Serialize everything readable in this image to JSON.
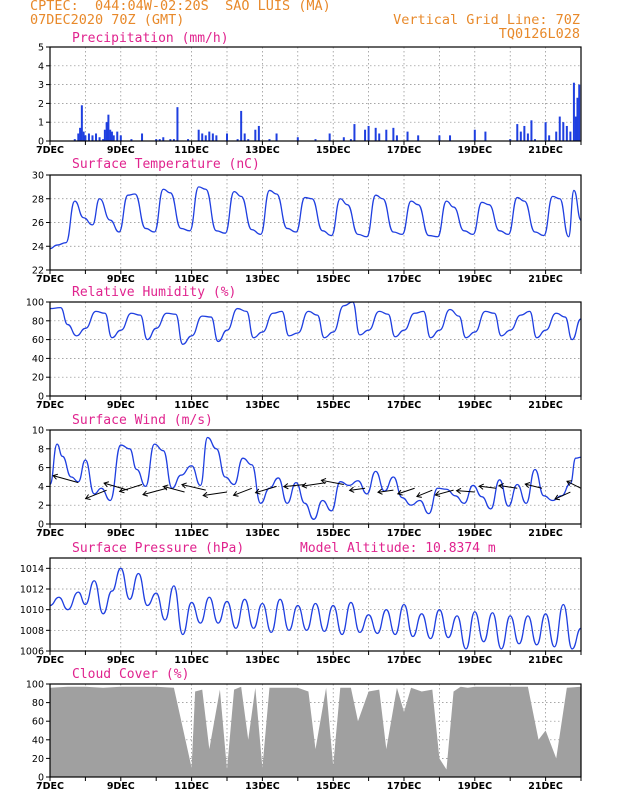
{
  "header": {
    "line1": "CPTEC:  044:04W-02:20S  SAO LUIS (MA)",
    "line2": "07DEC2020 70Z (GMT)",
    "right1": "Vertical Grid Line: 70Z",
    "right2": "TQ0126L028"
  },
  "colors": {
    "header": "#e8892a",
    "title": "#e0238e",
    "line": "#1f3fe0",
    "cloud": "#a0a0a0",
    "arrow": "#000000"
  },
  "x_axis": {
    "labels": [
      "7DEC",
      "9DEC",
      "11DEC",
      "13DEC",
      "15DEC",
      "17DEC",
      "19DEC",
      "21DEC"
    ],
    "label_days": [
      7,
      9,
      11,
      13,
      15,
      17,
      19,
      21
    ],
    "start_day": 7,
    "end_day": 22,
    "gridlines": "dotted"
  },
  "chart_data": [
    {
      "type": "bar",
      "title": "Precipitation (mm/h)",
      "ylim": [
        0,
        5
      ],
      "yticks": [
        0,
        1,
        2,
        3,
        4,
        5
      ],
      "x": [
        7.7,
        7.8,
        7.85,
        7.9,
        7.95,
        8.0,
        8.1,
        8.2,
        8.3,
        8.4,
        8.5,
        8.55,
        8.6,
        8.65,
        8.7,
        8.75,
        8.8,
        8.9,
        9.0,
        9.3,
        9.6,
        10.0,
        10.1,
        10.2,
        10.4,
        10.5,
        10.6,
        10.9,
        11.2,
        11.3,
        11.4,
        11.5,
        11.6,
        11.7,
        12.0,
        12.3,
        12.4,
        12.5,
        12.6,
        12.8,
        12.9,
        13.2,
        13.4,
        14.0,
        14.5,
        14.9,
        15.3,
        15.5,
        15.6,
        15.9,
        16.0,
        16.2,
        16.3,
        16.5,
        16.7,
        16.8,
        17.1,
        17.4,
        18.0,
        18.3,
        19.0,
        19.3,
        20.0,
        20.2,
        20.3,
        20.4,
        20.5,
        20.6,
        20.7,
        21.0,
        21.1,
        21.3,
        21.4,
        21.5,
        21.6,
        21.7,
        21.8,
        21.85,
        21.9,
        21.95
      ],
      "values": [
        0.1,
        0.4,
        0.7,
        1.9,
        0.5,
        0.3,
        0.4,
        0.3,
        0.4,
        0.2,
        0.1,
        0.6,
        1.0,
        1.4,
        0.6,
        0.5,
        0.3,
        0.5,
        0.3,
        0.1,
        0.4,
        0.1,
        0.1,
        0.2,
        0.1,
        0.1,
        1.8,
        0.1,
        0.6,
        0.4,
        0.3,
        0.5,
        0.4,
        0.3,
        0.4,
        0.1,
        1.6,
        0.4,
        0.1,
        0.6,
        0.8,
        0.1,
        0.4,
        0.2,
        0.1,
        0.4,
        0.2,
        0.1,
        0.9,
        0.6,
        0.8,
        0.7,
        0.4,
        0.6,
        0.7,
        0.3,
        0.5,
        0.3,
        0.3,
        0.3,
        0.6,
        0.5,
        0.1,
        0.9,
        0.5,
        0.8,
        0.4,
        1.1,
        0.1,
        1.0,
        0.3,
        0.5,
        1.3,
        1.0,
        0.8,
        0.5,
        3.1,
        1.3,
        2.3,
        3.0
      ],
      "xlabel": "",
      "ylabel": ""
    },
    {
      "type": "line",
      "title": "Surface Temperature (nC)",
      "ylim": [
        22,
        30
      ],
      "yticks": [
        22,
        24,
        26,
        28,
        30
      ],
      "x": [
        7.0,
        7.2,
        7.45,
        7.7,
        7.95,
        8.2,
        8.4,
        8.7,
        8.95,
        9.2,
        9.4,
        9.7,
        9.95,
        10.2,
        10.4,
        10.7,
        10.95,
        11.2,
        11.4,
        11.7,
        11.95,
        12.2,
        12.4,
        12.7,
        12.95,
        13.2,
        13.4,
        13.7,
        13.95,
        14.2,
        14.4,
        14.7,
        14.95,
        15.2,
        15.4,
        15.7,
        15.95,
        16.2,
        16.4,
        16.7,
        16.95,
        17.2,
        17.4,
        17.7,
        17.95,
        18.2,
        18.4,
        18.7,
        18.95,
        19.2,
        19.4,
        19.7,
        19.95,
        20.2,
        20.4,
        20.7,
        20.95,
        21.2,
        21.4,
        21.65,
        21.8,
        22.0
      ],
      "values": [
        23.8,
        24.1,
        24.3,
        27.8,
        26.4,
        25.8,
        28.0,
        26.2,
        25.2,
        28.3,
        28.4,
        25.5,
        25.2,
        28.8,
        28.5,
        25.5,
        25.3,
        29.0,
        28.8,
        25.3,
        25.1,
        28.6,
        28.2,
        25.4,
        25.0,
        28.7,
        28.4,
        25.5,
        25.2,
        28.1,
        28.0,
        25.3,
        24.9,
        28.0,
        27.5,
        25.0,
        24.8,
        28.3,
        28.0,
        25.2,
        25.0,
        27.8,
        27.5,
        24.9,
        24.8,
        27.8,
        27.3,
        25.3,
        25.0,
        27.7,
        27.5,
        25.3,
        25.0,
        28.1,
        27.8,
        25.2,
        24.9,
        28.2,
        28.0,
        24.8,
        28.7,
        26.2
      ],
      "xlabel": "",
      "ylabel": ""
    },
    {
      "type": "line",
      "title": "Relative Humidity (%)",
      "ylim": [
        0,
        100
      ],
      "yticks": [
        0,
        20,
        40,
        60,
        80,
        100
      ],
      "x": [
        7.0,
        7.3,
        7.5,
        7.75,
        8.0,
        8.3,
        8.55,
        8.75,
        9.0,
        9.3,
        9.55,
        9.75,
        10.0,
        10.3,
        10.55,
        10.75,
        11.0,
        11.3,
        11.55,
        11.75,
        12.0,
        12.3,
        12.55,
        12.75,
        13.0,
        13.3,
        13.55,
        13.75,
        14.0,
        14.3,
        14.55,
        14.75,
        15.0,
        15.3,
        15.55,
        15.75,
        16.0,
        16.3,
        16.55,
        16.75,
        17.0,
        17.3,
        17.55,
        17.75,
        18.0,
        18.3,
        18.55,
        18.75,
        19.0,
        19.3,
        19.55,
        19.75,
        20.0,
        20.3,
        20.55,
        20.75,
        21.0,
        21.3,
        21.55,
        21.75,
        22.0
      ],
      "values": [
        93,
        94,
        76,
        64,
        72,
        90,
        88,
        62,
        70,
        88,
        86,
        60,
        72,
        88,
        87,
        55,
        64,
        85,
        84,
        58,
        70,
        93,
        90,
        62,
        68,
        88,
        90,
        64,
        67,
        90,
        86,
        62,
        68,
        96,
        100,
        65,
        70,
        90,
        87,
        63,
        70,
        88,
        90,
        62,
        70,
        92,
        85,
        62,
        68,
        90,
        88,
        64,
        70,
        86,
        90,
        62,
        70,
        88,
        84,
        60,
        82
      ],
      "xlabel": "",
      "ylabel": ""
    },
    {
      "type": "line",
      "title": "Surface Wind (m/s)",
      "ylim": [
        0,
        10
      ],
      "yticks": [
        0,
        2,
        4,
        6,
        8,
        10
      ],
      "x": [
        7.0,
        7.2,
        7.35,
        7.6,
        7.8,
        8.0,
        8.25,
        8.45,
        8.7,
        9.0,
        9.25,
        9.45,
        9.7,
        9.95,
        10.2,
        10.45,
        10.7,
        11.0,
        11.25,
        11.45,
        11.7,
        11.95,
        12.2,
        12.45,
        12.7,
        12.95,
        13.2,
        13.45,
        13.7,
        13.95,
        14.2,
        14.45,
        14.7,
        14.95,
        15.2,
        15.45,
        15.7,
        15.95,
        16.2,
        16.45,
        16.7,
        16.95,
        17.2,
        17.45,
        17.7,
        17.95,
        18.2,
        18.45,
        18.7,
        18.95,
        19.2,
        19.45,
        19.7,
        19.95,
        20.2,
        20.45,
        20.7,
        20.95,
        21.2,
        21.45,
        21.7,
        21.85,
        22.0
      ],
      "values": [
        4.2,
        8.5,
        7.2,
        5.0,
        4.5,
        6.8,
        3.2,
        3.8,
        2.5,
        8.4,
        8.0,
        5.8,
        4.0,
        8.5,
        7.8,
        3.8,
        5.2,
        6.2,
        4.1,
        9.2,
        8.0,
        5.0,
        4.2,
        7.0,
        6.3,
        2.2,
        3.8,
        4.9,
        2.2,
        4.4,
        2.2,
        0.5,
        2.5,
        1.4,
        4.5,
        4.1,
        4.6,
        3.2,
        5.6,
        3.5,
        5.0,
        2.8,
        2.0,
        2.5,
        1.1,
        3.8,
        3.7,
        3.0,
        2.2,
        4.1,
        2.9,
        1.6,
        4.7,
        1.9,
        4.2,
        2.2,
        5.8,
        3.0,
        2.5,
        3.0,
        4.3,
        7.0,
        7.1
      ],
      "vectors": {
        "x": [
          7.8,
          8.6,
          9.2,
          9.6,
          10.3,
          10.8,
          11.4,
          12.0,
          12.7,
          13.4,
          14.2,
          14.8,
          15.3,
          15.9,
          16.7,
          17.3,
          17.8,
          18.4,
          19.0,
          19.6,
          20.2,
          20.9,
          21.7,
          22.0
        ],
        "speed": [
          4.4,
          3.6,
          3.6,
          4.2,
          3.8,
          3.4,
          3.6,
          3.4,
          3.8,
          4.0,
          4.2,
          4.4,
          4.2,
          3.8,
          3.6,
          3.8,
          3.6,
          3.6,
          3.4,
          3.8,
          3.8,
          3.8,
          3.4,
          3.8
        ],
        "u": [
          -1.8,
          -1.5,
          -1.7,
          -1.6,
          -1.7,
          -1.5,
          -1.7,
          -1.7,
          -1.3,
          -1.5,
          -1.5,
          -1.7,
          -1.6,
          -1.1,
          -1.1,
          -1.2,
          -1.1,
          -1.3,
          -1.3,
          -1.2,
          -1.3,
          -1.2,
          -1.1,
          -1.0
        ],
        "v": [
          1.0,
          -1.2,
          1.0,
          -1.0,
          -0.9,
          0.8,
          0.8,
          -0.5,
          -1.0,
          -0.9,
          -0.3,
          -0.5,
          0.6,
          -0.3,
          -0.3,
          -0.8,
          -0.9,
          -0.7,
          0.2,
          0.3,
          0.4,
          0.6,
          -1.0,
          1.0
        ]
      },
      "xlabel": "",
      "ylabel": ""
    },
    {
      "type": "line",
      "title": "Surface Pressure (hPa)",
      "annotation": "Model Altitude: 10.8374 m",
      "ylim": [
        1006,
        1015
      ],
      "yticks": [
        1006,
        1008,
        1010,
        1012,
        1014
      ],
      "x": [
        7.0,
        7.25,
        7.5,
        7.8,
        8.0,
        8.25,
        8.5,
        8.75,
        9.0,
        9.25,
        9.5,
        9.75,
        10.0,
        10.25,
        10.5,
        10.75,
        11.0,
        11.25,
        11.5,
        11.75,
        12.0,
        12.25,
        12.5,
        12.75,
        13.0,
        13.25,
        13.5,
        13.75,
        14.0,
        14.25,
        14.5,
        14.75,
        15.0,
        15.25,
        15.5,
        15.75,
        16.0,
        16.25,
        16.5,
        16.75,
        17.0,
        17.25,
        17.5,
        17.75,
        18.0,
        18.25,
        18.5,
        18.75,
        19.0,
        19.25,
        19.5,
        19.75,
        20.0,
        20.25,
        20.5,
        20.75,
        21.0,
        21.25,
        21.5,
        21.75,
        22.0
      ],
      "values": [
        1010.4,
        1011.2,
        1010.0,
        1011.7,
        1010.5,
        1012.8,
        1009.6,
        1011.8,
        1014.0,
        1011.0,
        1013.5,
        1010.4,
        1011.6,
        1009.0,
        1012.3,
        1007.6,
        1010.7,
        1008.7,
        1011.2,
        1008.7,
        1010.8,
        1008.2,
        1011.0,
        1008.2,
        1010.6,
        1007.8,
        1011.0,
        1008.0,
        1010.4,
        1008.0,
        1010.6,
        1007.9,
        1010.4,
        1007.6,
        1010.7,
        1007.8,
        1009.5,
        1007.7,
        1010.0,
        1007.6,
        1010.5,
        1007.4,
        1009.6,
        1007.2,
        1010.0,
        1007.3,
        1009.4,
        1006.2,
        1009.8,
        1006.9,
        1009.7,
        1006.2,
        1009.4,
        1006.7,
        1009.4,
        1006.6,
        1009.6,
        1006.4,
        1010.5,
        1006.2,
        1008.2
      ],
      "xlabel": "",
      "ylabel": ""
    },
    {
      "type": "area",
      "title": "Cloud Cover (%)",
      "ylim": [
        0,
        100
      ],
      "yticks": [
        0,
        20,
        40,
        60,
        80,
        100
      ],
      "x": [
        7.0,
        7.5,
        8.0,
        8.5,
        9.0,
        9.5,
        10.0,
        10.5,
        11.0,
        11.1,
        11.3,
        11.5,
        11.8,
        12.0,
        12.2,
        12.4,
        12.6,
        12.8,
        13.0,
        13.2,
        13.5,
        14.0,
        14.3,
        14.5,
        14.8,
        15.0,
        15.2,
        15.5,
        15.7,
        16.0,
        16.3,
        16.5,
        16.8,
        17.0,
        17.2,
        17.5,
        17.8,
        18.0,
        18.2,
        18.4,
        18.6,
        18.8,
        19.0,
        19.5,
        20.0,
        20.5,
        20.8,
        21.0,
        21.3,
        21.6,
        22.0
      ],
      "values": [
        96,
        97,
        97,
        96,
        97,
        97,
        97,
        96,
        10,
        92,
        94,
        30,
        94,
        8,
        94,
        97,
        40,
        96,
        10,
        96,
        96,
        96,
        92,
        30,
        96,
        12,
        96,
        96,
        60,
        92,
        94,
        30,
        96,
        70,
        96,
        92,
        94,
        20,
        8,
        92,
        97,
        96,
        97,
        97,
        97,
        97,
        40,
        50,
        20,
        96,
        97
      ],
      "xlabel": "",
      "ylabel": ""
    }
  ]
}
